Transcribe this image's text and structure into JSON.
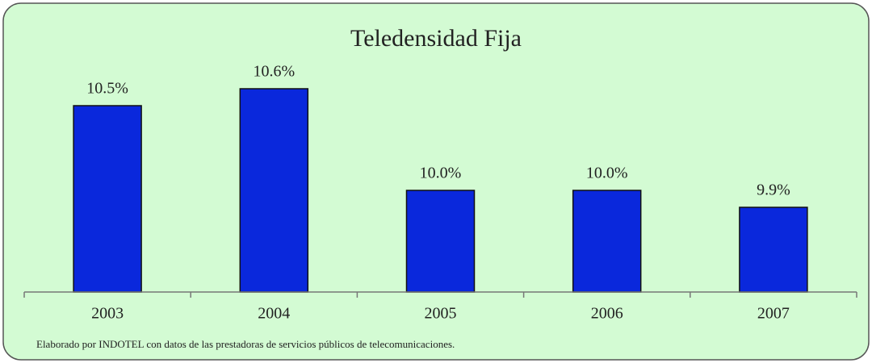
{
  "chart_data": {
    "type": "bar",
    "title": "Teledensidad Fija",
    "categories": [
      "2003",
      "2004",
      "2005",
      "2006",
      "2007"
    ],
    "values": [
      10.5,
      10.6,
      10.0,
      10.0,
      9.9
    ],
    "value_labels": [
      "10.5%",
      "10.6%",
      "10.0%",
      "10.0%",
      "9.9%"
    ],
    "color": "#0a28dc",
    "ylim": [
      9.4,
      10.7
    ],
    "source": "Elaborado por INDOTEL con datos de las prestadoras de servicios públicos de telecomunicaciones."
  }
}
